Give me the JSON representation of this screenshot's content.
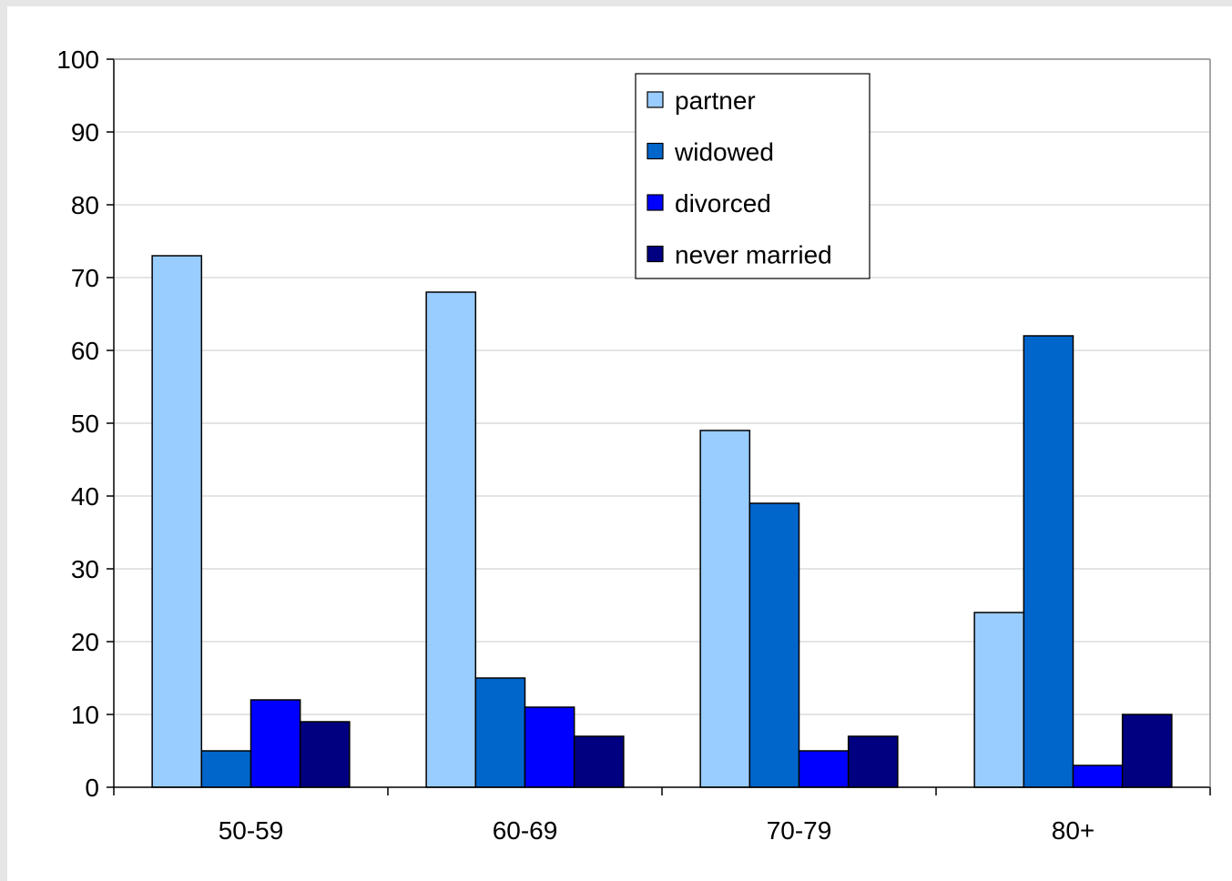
{
  "chart_data": {
    "type": "bar",
    "categories": [
      "50-59",
      "60-69",
      "70-79",
      "80+"
    ],
    "series": [
      {
        "name": "partner",
        "values": [
          73,
          68,
          49,
          24
        ],
        "color": "#99CCFF"
      },
      {
        "name": "widowed",
        "values": [
          5,
          15,
          39,
          62
        ],
        "color": "#0066CC"
      },
      {
        "name": "divorced",
        "values": [
          12,
          11,
          5,
          3
        ],
        "color": "#0000FF"
      },
      {
        "name": "never married",
        "values": [
          9,
          7,
          7,
          10
        ],
        "color": "#000080"
      }
    ],
    "title": "",
    "xlabel": "",
    "ylabel": "",
    "ylim": [
      0,
      100
    ],
    "yticks": [
      "0",
      "10",
      "20",
      "30",
      "40",
      "50",
      "60",
      "70",
      "80",
      "90",
      "100"
    ],
    "grid": true,
    "legend_position": "top-right"
  }
}
